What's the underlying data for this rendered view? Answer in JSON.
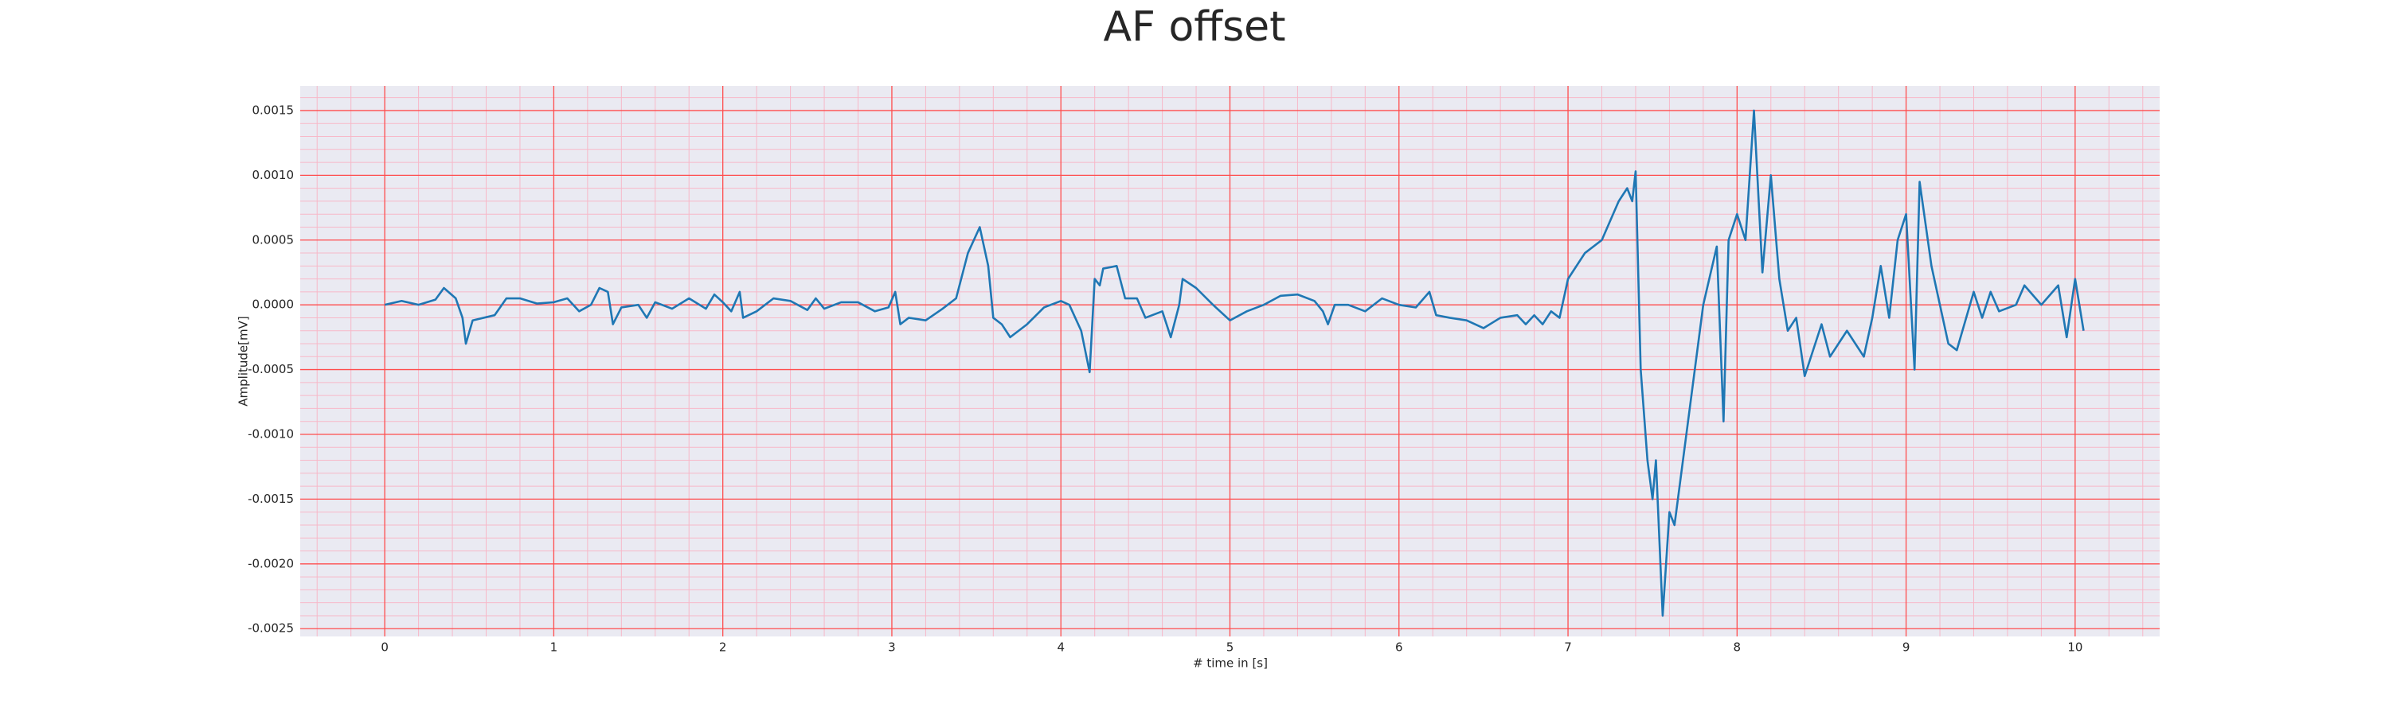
{
  "chart_data": {
    "type": "line",
    "title": "AF offset",
    "xlabel": "# time in [s]",
    "ylabel": "Amplitude[mV]",
    "xlim": [
      -0.5,
      10.5
    ],
    "xticks": [
      0,
      1,
      2,
      3,
      4,
      5,
      6,
      7,
      8,
      9,
      10
    ],
    "ylim": [
      -0.00256,
      0.00169
    ],
    "yticks": [
      {
        "value": -0.0025,
        "label": "-0.0025"
      },
      {
        "value": -0.002,
        "label": "-0.0020"
      },
      {
        "value": -0.0015,
        "label": "-0.0015"
      },
      {
        "value": -0.001,
        "label": "-0.0010"
      },
      {
        "value": -0.0005,
        "label": "-0.0005"
      },
      {
        "value": 0,
        "label": "0.0000"
      },
      {
        "value": 0.0005,
        "label": "0.0005"
      },
      {
        "value": 0.001,
        "label": "0.0010"
      },
      {
        "value": 0.0015,
        "label": "0.0015"
      }
    ],
    "grid": {
      "major_color": "#ff4d4d",
      "minor_color": "#f7b8c8",
      "minor_divisions": 5
    },
    "background": "#eaeaf2",
    "series": [
      {
        "name": "AF offset",
        "color": "#1f77b4",
        "x": [
          0,
          0.1,
          0.2,
          0.3,
          0.35,
          0.42,
          0.46,
          0.48,
          0.52,
          0.65,
          0.72,
          0.8,
          0.9,
          1.0,
          1.08,
          1.15,
          1.22,
          1.27,
          1.32,
          1.35,
          1.4,
          1.5,
          1.55,
          1.6,
          1.7,
          1.8,
          1.9,
          1.95,
          2.0,
          2.05,
          2.1,
          2.12,
          2.2,
          2.3,
          2.4,
          2.5,
          2.55,
          2.6,
          2.7,
          2.8,
          2.9,
          2.98,
          3.02,
          3.05,
          3.1,
          3.2,
          3.3,
          3.38,
          3.45,
          3.52,
          3.57,
          3.6,
          3.65,
          3.7,
          3.8,
          3.9,
          4.0,
          4.05,
          4.12,
          4.17,
          4.2,
          4.23,
          4.25,
          4.33,
          4.38,
          4.45,
          4.5,
          4.6,
          4.65,
          4.7,
          4.72,
          4.8,
          4.9,
          5.0,
          5.1,
          5.2,
          5.3,
          5.4,
          5.5,
          5.55,
          5.58,
          5.62,
          5.7,
          5.8,
          5.9,
          6.0,
          6.1,
          6.18,
          6.22,
          6.3,
          6.4,
          6.5,
          6.6,
          6.7,
          6.75,
          6.8,
          6.85,
          6.9,
          6.95,
          7.0,
          7.1,
          7.2,
          7.3,
          7.35,
          7.38,
          7.4,
          7.43,
          7.47,
          7.5,
          7.52,
          7.56,
          7.6,
          7.63,
          7.7,
          7.8,
          7.88,
          7.92,
          7.95,
          8.0,
          8.05,
          8.1,
          8.15,
          8.2,
          8.25,
          8.3,
          8.35,
          8.4,
          8.5,
          8.55,
          8.65,
          8.75,
          8.8,
          8.85,
          8.9,
          8.95,
          9.0,
          9.05,
          9.08,
          9.15,
          9.25,
          9.3,
          9.4,
          9.45,
          9.5,
          9.55,
          9.65,
          9.7,
          9.8,
          9.9,
          9.95,
          10.0,
          10.05
        ],
        "values": [
          0,
          3e-05,
          0,
          4e-05,
          0.00013,
          5e-05,
          -0.0001,
          -0.0003,
          -0.00012,
          -8e-05,
          5e-05,
          5e-05,
          1e-05,
          2e-05,
          5e-05,
          -5e-05,
          0,
          0.00013,
          0.0001,
          -0.00015,
          -2e-05,
          0,
          -0.0001,
          2e-05,
          -3e-05,
          5e-05,
          -3e-05,
          8e-05,
          2e-05,
          -5e-05,
          0.0001,
          -0.0001,
          -5e-05,
          5e-05,
          3e-05,
          -4e-05,
          5e-05,
          -3e-05,
          2e-05,
          2e-05,
          -5e-05,
          -2e-05,
          0.0001,
          -0.00015,
          -0.0001,
          -0.00012,
          -3e-05,
          5e-05,
          0.0004,
          0.0006,
          0.0003,
          -0.0001,
          -0.00015,
          -0.00025,
          -0.00015,
          -2e-05,
          3e-05,
          0,
          -0.0002,
          -0.00052,
          0.0002,
          0.00015,
          0.00028,
          0.0003,
          5e-05,
          5e-05,
          -0.0001,
          -5e-05,
          -0.00025,
          0,
          0.0002,
          0.00013,
          0,
          -0.00012,
          -5e-05,
          0,
          7e-05,
          8e-05,
          3e-05,
          -5e-05,
          -0.00015,
          0,
          0,
          -5e-05,
          5e-05,
          0,
          -2e-05,
          0.0001,
          -8e-05,
          -0.0001,
          -0.00012,
          -0.00018,
          -0.0001,
          -8e-05,
          -0.00015,
          -8e-05,
          -0.00015,
          -5e-05,
          -0.0001,
          0.0002,
          0.0004,
          0.0005,
          0.0008,
          0.0009,
          0.0008,
          0.00103,
          -0.0005,
          -0.0012,
          -0.0015,
          -0.0012,
          -0.0024,
          -0.0016,
          -0.0017,
          -0.001,
          0,
          0.00045,
          -0.0009,
          0.0005,
          0.0007,
          0.0005,
          0.0015,
          0.00025,
          0.001,
          0.0002,
          -0.0002,
          -0.0001,
          -0.00055,
          -0.00015,
          -0.0004,
          -0.0002,
          -0.0004,
          -0.0001,
          0.0003,
          -0.0001,
          0.0005,
          0.0007,
          -0.0005,
          0.00095,
          0.0003,
          -0.0003,
          -0.00035,
          0.0001,
          -0.0001,
          0.0001,
          -5e-05,
          0,
          0.00015,
          0,
          0.00015,
          -0.00025,
          0.0002,
          -0.0002
        ]
      }
    ]
  }
}
